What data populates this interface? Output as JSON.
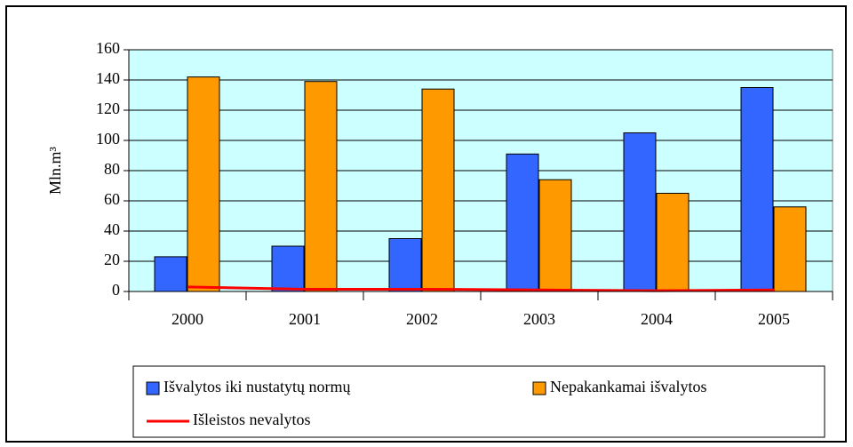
{
  "chart_data": {
    "type": "bar",
    "categories": [
      "2000",
      "2001",
      "2002",
      "2003",
      "2004",
      "2005"
    ],
    "series": [
      {
        "name": "Išvalytos iki nustatytų normų",
        "color": "#3366ff",
        "values": [
          23,
          30,
          35,
          91,
          105,
          135
        ]
      },
      {
        "name": "Nepakankamai išvalytos",
        "color": "#ff9900",
        "values": [
          142,
          139,
          134,
          74,
          65,
          56
        ]
      },
      {
        "name": "Išleistos nevalytos",
        "color": "#ff0000",
        "type": "line",
        "values": [
          3,
          1.5,
          1.5,
          1,
          0.5,
          1
        ]
      }
    ],
    "ylabel": "Mln.m³",
    "ylim": [
      0,
      160
    ],
    "yticks": [
      0,
      20,
      40,
      60,
      80,
      100,
      120,
      140,
      160
    ],
    "grid": true,
    "plot_background": "#ccffff",
    "legend": "bottom"
  }
}
